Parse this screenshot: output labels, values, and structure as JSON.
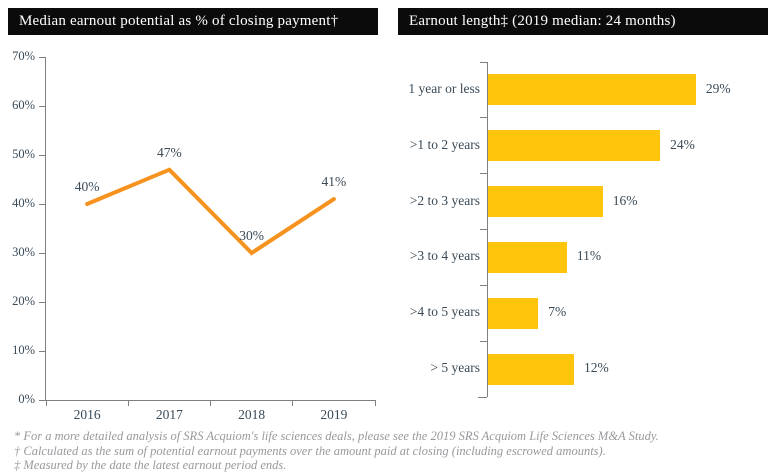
{
  "colors": {
    "line": "#F6921E",
    "bar": "#FFC40C",
    "title_bg": "#0B0B0B",
    "title_fg": "#FFFFFF",
    "axis": "#7F7F7F",
    "text": "#3A4A57",
    "footnote": "#97999C"
  },
  "chart_data": [
    {
      "type": "line",
      "title": "Median earnout potential as % of closing payment†",
      "categories": [
        "2016",
        "2017",
        "2018",
        "2019"
      ],
      "values": [
        40,
        47,
        30,
        41
      ],
      "value_labels": [
        "40%",
        "47%",
        "30%",
        "41%"
      ],
      "xlabel": "",
      "ylabel": "",
      "ylim": [
        0,
        70
      ],
      "yticks": [
        "0%",
        "10%",
        "20%",
        "30%",
        "40%",
        "50%",
        "60%",
        "70%"
      ],
      "grid": false,
      "legend": "none",
      "line_color": "#F6921E"
    },
    {
      "type": "bar",
      "orientation": "horizontal",
      "title": "Earnout length‡ (2019 median: 24 months)",
      "categories": [
        "1 year or less",
        ">1 to 2 years",
        ">2 to 3 years",
        ">3 to 4 years",
        ">4 to 5 years",
        "> 5 years"
      ],
      "values": [
        29,
        24,
        16,
        11,
        7,
        12
      ],
      "value_labels": [
        "29%",
        "24%",
        "16%",
        "11%",
        "7%",
        "12%"
      ],
      "xlabel": "",
      "ylabel": "",
      "xlim": [
        0,
        29
      ],
      "grid": false,
      "legend": "none",
      "bar_color": "#FFC40C"
    }
  ],
  "footnotes": [
    "* For a more detailed analysis of SRS Acquiom's life sciences deals, please see the 2019 SRS Acquiom Life Sciences M&A Study.",
    "† Calculated as the sum of potential earnout payments over the amount paid at closing (including escrowed amounts).",
    "‡ Measured by the date the latest earnout period ends."
  ]
}
